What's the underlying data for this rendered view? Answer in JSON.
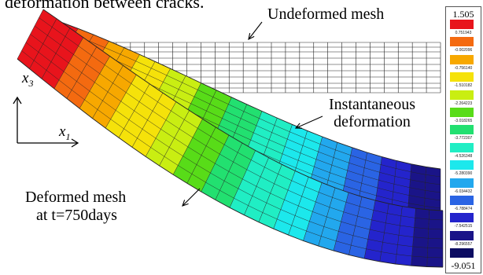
{
  "caption_fragment": "deformation between cracks.",
  "labels": {
    "undeformed": "Undeformed mesh",
    "instantaneous_line1": "Instantaneous",
    "instantaneous_line2": "deformation",
    "deformed_line1": "Deformed mesh",
    "deformed_line2": "at t=750days",
    "axis_x3_base": "x",
    "axis_x3_sub": "3",
    "axis_x1_base": "x",
    "axis_x1_sub": "1"
  },
  "legend": {
    "max": "1.505",
    "min": "-9.051",
    "ticks": [
      "0.751943",
      "-0.002096",
      "-0.756140",
      "-1.510182",
      "-2.264223",
      "-3.018265",
      "-3.772307",
      "-4.526348",
      "-5.280390",
      "-6.034432",
      "-6.788474",
      "-7.542515",
      "-8.296557"
    ],
    "colors": [
      "#e8141c",
      "#f46a10",
      "#f7a800",
      "#f5e20a",
      "#c9ee12",
      "#58dc18",
      "#22e070",
      "#20eec4",
      "#1ce8ec",
      "#22a8ee",
      "#2a64e4",
      "#2424cc",
      "#1a1488",
      "#0c0c62"
    ]
  },
  "colors": {
    "beam_gradient": [
      "#e8141c",
      "#f46a10",
      "#f7a800",
      "#f5e20a",
      "#c9ee12",
      "#58dc18",
      "#22e070",
      "#20eec4",
      "#1ce8ec",
      "#22a8ee",
      "#2a64e4",
      "#2424cc",
      "#1a1488"
    ],
    "mesh": "#222222"
  }
}
